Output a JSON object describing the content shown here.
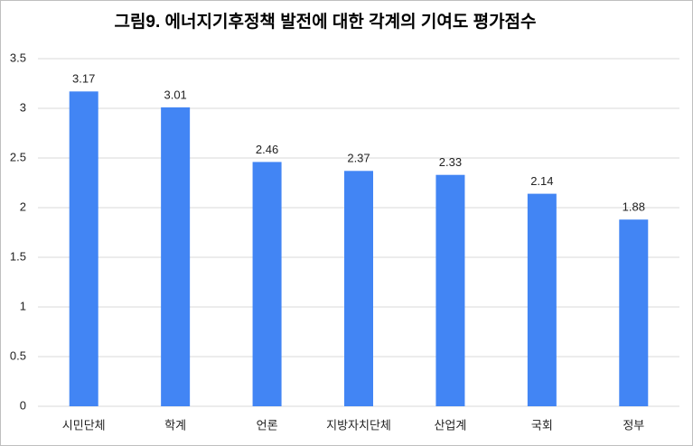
{
  "chart_data": {
    "type": "bar",
    "title": "그림9. 에너지기후정책 발전에 대한 각계의 기여도 평가점수",
    "categories": [
      "시민단체",
      "학계",
      "언론",
      "지방자치단체",
      "산업계",
      "국회",
      "정부"
    ],
    "values": [
      3.17,
      3.01,
      2.46,
      2.37,
      2.33,
      2.14,
      1.88
    ],
    "color": "#4285f4",
    "ylim": [
      0,
      3.5
    ],
    "yticks": [
      0,
      0.5,
      1,
      1.5,
      2,
      2.5,
      3,
      3.5
    ],
    "grid": true
  }
}
